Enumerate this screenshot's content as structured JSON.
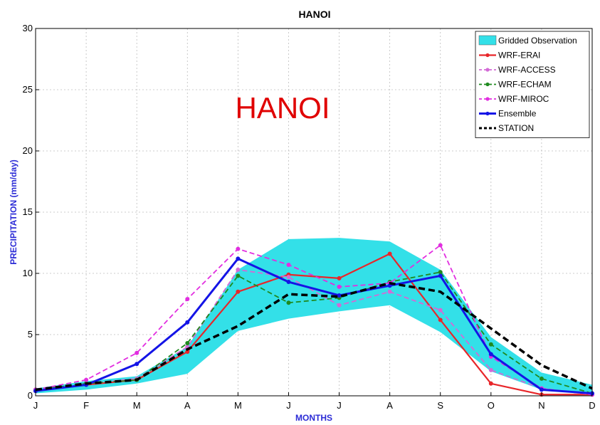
{
  "chart_data": {
    "type": "line",
    "title": "HANOI",
    "overlay_text": "HANOI",
    "xlabel": "MONTHS",
    "ylabel": "PRECIPITATION (mm/day)",
    "ylim": [
      0,
      30
    ],
    "yticks": [
      0,
      5,
      10,
      15,
      20,
      25,
      30
    ],
    "grid": true,
    "legend_position": "top-right",
    "categories": [
      "J",
      "F",
      "M",
      "A",
      "M",
      "J",
      "J",
      "A",
      "S",
      "O",
      "N",
      "D"
    ],
    "band": {
      "name": "Gridded Observation",
      "color": "#33e0e8",
      "lower": [
        0.2,
        0.5,
        1.0,
        1.8,
        5.3,
        6.3,
        6.9,
        7.4,
        5.2,
        2.0,
        0.5,
        0.2
      ],
      "upper": [
        0.6,
        1.2,
        1.6,
        4.0,
        10.3,
        12.8,
        12.9,
        12.6,
        10.3,
        4.8,
        1.9,
        0.9
      ]
    },
    "series": [
      {
        "name": "WRF-ERAI",
        "color": "#e8262a",
        "dash": "",
        "marker": true,
        "width": 2.2,
        "values": [
          0.4,
          0.9,
          1.3,
          3.6,
          8.5,
          9.9,
          9.6,
          11.6,
          6.2,
          1.0,
          0.1,
          0.1
        ]
      },
      {
        "name": "WRF-ACCESS",
        "color": "#d36ad6",
        "dash": "7,4",
        "marker": true,
        "width": 1.8,
        "values": [
          0.4,
          1.0,
          1.4,
          4.0,
          10.3,
          9.7,
          7.4,
          8.5,
          7.0,
          2.1,
          0.6,
          0.1
        ]
      },
      {
        "name": "WRF-ECHAM",
        "color": "#1f8a1f",
        "dash": "7,4",
        "marker": true,
        "width": 1.8,
        "values": [
          0.5,
          1.0,
          1.3,
          4.3,
          9.8,
          7.6,
          8.0,
          9.3,
          10.1,
          4.2,
          1.4,
          0.2
        ]
      },
      {
        "name": "WRF-MIROC",
        "color": "#e22ee0",
        "dash": "7,4",
        "marker": true,
        "width": 1.8,
        "values": [
          0.5,
          1.3,
          3.5,
          7.9,
          12.0,
          10.7,
          8.9,
          9.2,
          12.3,
          3.2,
          0.6,
          0.1
        ]
      },
      {
        "name": "Ensemble",
        "color": "#1414e6",
        "dash": "",
        "marker": true,
        "width": 3,
        "values": [
          0.4,
          0.9,
          2.6,
          6.0,
          11.2,
          9.3,
          8.2,
          9.0,
          9.8,
          3.4,
          0.5,
          0.2
        ]
      },
      {
        "name": "STATION",
        "color": "#000000",
        "dash": "9,5",
        "marker": false,
        "width": 3.5,
        "values": [
          0.5,
          1.0,
          1.3,
          3.8,
          5.7,
          8.3,
          8.1,
          9.2,
          8.5,
          5.5,
          2.5,
          0.6
        ]
      }
    ]
  }
}
